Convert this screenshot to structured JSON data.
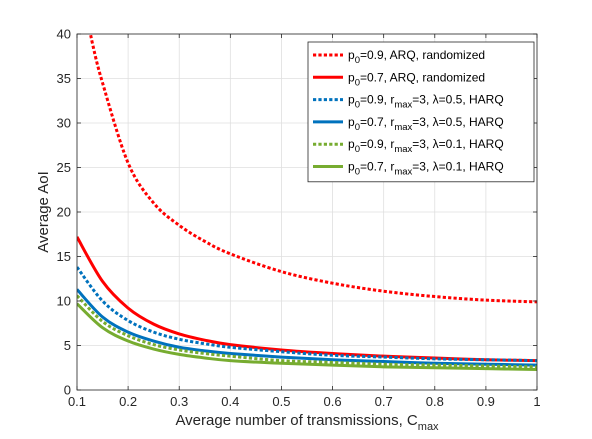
{
  "chart_data": {
    "type": "line",
    "xlabel": "Average number of transmissions, C",
    "xlabel_sub": "max",
    "ylabel": "Average AoI",
    "xlim": [
      0.1,
      1
    ],
    "ylim": [
      0,
      40
    ],
    "xticks": [
      0.1,
      0.2,
      0.3,
      0.4,
      0.5,
      0.6,
      0.7,
      0.8,
      0.9,
      1
    ],
    "xtick_labels": [
      "0.1",
      "0.2",
      "0.3",
      "0.4",
      "0.5",
      "0.6",
      "0.7",
      "0.8",
      "0.9",
      "1"
    ],
    "yticks": [
      0,
      5,
      10,
      15,
      20,
      25,
      30,
      35,
      40
    ],
    "ytick_labels": [
      "0",
      "5",
      "10",
      "15",
      "20",
      "25",
      "30",
      "35",
      "40"
    ],
    "grid": true,
    "legend_position": "top-right",
    "series": [
      {
        "legend": [
          "p",
          "0",
          "=0.9, ARQ, randomized"
        ],
        "color": "#ff0000",
        "style": "dotted",
        "x": [
          0.11,
          0.12,
          0.13,
          0.15,
          0.2,
          0.25,
          0.3,
          0.35,
          0.4,
          0.5,
          0.6,
          0.7,
          0.8,
          0.9,
          1.0
        ],
        "y": [
          44.0,
          42.0,
          39.0,
          34.5,
          25.5,
          21.0,
          18.5,
          16.7,
          15.3,
          13.3,
          12.0,
          11.1,
          10.5,
          10.1,
          9.9
        ]
      },
      {
        "legend": [
          "p",
          "0",
          "=0.7, ARQ, randomized"
        ],
        "color": "#ff0000",
        "style": "solid",
        "x": [
          0.1,
          0.15,
          0.2,
          0.25,
          0.3,
          0.35,
          0.4,
          0.5,
          0.6,
          0.7,
          0.8,
          0.9,
          1.0
        ],
        "y": [
          17.2,
          12.2,
          9.2,
          7.4,
          6.3,
          5.6,
          5.1,
          4.5,
          4.1,
          3.8,
          3.6,
          3.4,
          3.3
        ]
      },
      {
        "legend": [
          "p",
          "0",
          "=0.9, r",
          "max",
          "=3,  λ=0.5, HARQ"
        ],
        "color": "#0072bd",
        "style": "dotted",
        "x": [
          0.1,
          0.15,
          0.2,
          0.25,
          0.3,
          0.35,
          0.4,
          0.5,
          0.6,
          0.7,
          0.8,
          0.9,
          1.0
        ],
        "y": [
          13.8,
          10.0,
          7.8,
          6.5,
          5.7,
          5.2,
          4.8,
          4.3,
          3.9,
          3.7,
          3.5,
          3.4,
          3.3
        ]
      },
      {
        "legend": [
          "p",
          "0",
          "=0.7, r",
          "max",
          "=3,  λ=0.5, HARQ"
        ],
        "color": "#0072bd",
        "style": "solid",
        "x": [
          0.1,
          0.15,
          0.2,
          0.25,
          0.3,
          0.35,
          0.4,
          0.5,
          0.6,
          0.7,
          0.8,
          0.9,
          1.0
        ],
        "y": [
          11.3,
          8.2,
          6.5,
          5.5,
          4.8,
          4.4,
          4.1,
          3.7,
          3.4,
          3.2,
          3.0,
          2.9,
          2.8
        ]
      },
      {
        "legend": [
          "p",
          "0",
          "=0.9, r",
          "max",
          "=3,  λ=0.1, HARQ"
        ],
        "color": "#77ac30",
        "style": "dotted",
        "x": [
          0.1,
          0.15,
          0.2,
          0.25,
          0.3,
          0.35,
          0.4,
          0.5,
          0.6,
          0.7,
          0.8,
          0.9,
          1.0
        ],
        "y": [
          10.6,
          7.7,
          6.1,
          5.1,
          4.5,
          4.1,
          3.8,
          3.3,
          3.1,
          2.9,
          2.8,
          2.7,
          2.6
        ]
      },
      {
        "legend": [
          "p",
          "0",
          "=0.7, r",
          "max",
          "=3,  λ=0.1, HARQ"
        ],
        "color": "#77ac30",
        "style": "solid",
        "x": [
          0.1,
          0.15,
          0.2,
          0.25,
          0.3,
          0.35,
          0.4,
          0.5,
          0.6,
          0.7,
          0.8,
          0.9,
          1.0
        ],
        "y": [
          9.7,
          7.0,
          5.5,
          4.6,
          4.0,
          3.6,
          3.3,
          3.0,
          2.8,
          2.6,
          2.5,
          2.4,
          2.3
        ]
      }
    ]
  }
}
